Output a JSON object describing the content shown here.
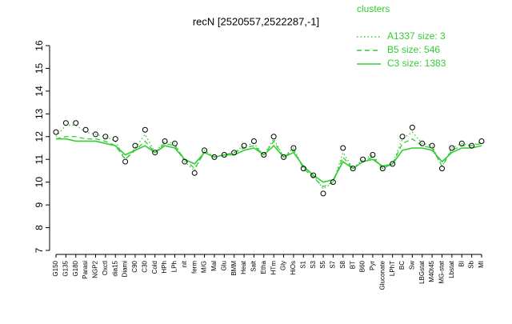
{
  "chart_data": {
    "type": "line",
    "title": "recN [2520557,2522287,-1]",
    "legend_title": "clusters",
    "categories": [
      "G150",
      "G135",
      "G180",
      "Parasi",
      "NGP2",
      "Oxctl",
      "dia15",
      "Diami",
      "C90",
      "C30",
      "Cold",
      "HPh",
      "LPh",
      "nit",
      "ferm",
      "M/G",
      "Mal",
      "Glu",
      "BMM",
      "Heat",
      "Salt",
      "Etha",
      "HTm",
      "Gly",
      "HiOs",
      "S1",
      "S3",
      "S5",
      "S7",
      "S8",
      "BT",
      "B60",
      "Pyr",
      "Gluconate",
      "LPhT",
      "BC",
      "Sw",
      "LBGstat",
      "M40t45",
      "MG-stat",
      "Lbstat",
      "BI",
      "Sb",
      "MI"
    ],
    "values": [
      12.2,
      12.6,
      12.6,
      12.3,
      12.1,
      12.0,
      11.9,
      10.9,
      11.6,
      12.3,
      11.3,
      11.8,
      11.7,
      10.9,
      10.4,
      11.4,
      11.1,
      11.2,
      11.3,
      11.6,
      11.8,
      11.2,
      12.0,
      11.1,
      11.5,
      10.6,
      10.3,
      9.5,
      10.0,
      11.5,
      10.6,
      11.0,
      11.2,
      10.6,
      10.8,
      12.0,
      12.4,
      11.7,
      11.6,
      10.6,
      11.5,
      11.7,
      11.6,
      11.8
    ],
    "point_color": "#000000",
    "series": [
      {
        "name": "A1337 size: 3",
        "color": "#33cc33",
        "dash": "dotted",
        "values": [
          12.0,
          12.5,
          12.5,
          12.2,
          12.1,
          12.0,
          11.8,
          11.0,
          11.5,
          12.1,
          11.3,
          11.8,
          11.7,
          10.9,
          10.5,
          11.4,
          11.1,
          11.2,
          11.3,
          11.6,
          11.7,
          11.2,
          11.9,
          11.1,
          11.5,
          10.6,
          10.3,
          9.7,
          10.0,
          11.3,
          10.6,
          11.0,
          11.2,
          10.6,
          10.8,
          11.9,
          12.2,
          11.7,
          11.6,
          10.7,
          11.5,
          11.7,
          11.6,
          11.8
        ]
      },
      {
        "name": "B5 size: 546",
        "color": "#33cc33",
        "dash": "dashed",
        "values": [
          11.9,
          12.0,
          12.0,
          11.9,
          11.9,
          11.8,
          11.6,
          11.0,
          11.4,
          11.8,
          11.3,
          11.7,
          11.6,
          11.0,
          10.6,
          11.3,
          11.1,
          11.2,
          11.3,
          11.5,
          11.6,
          11.2,
          11.8,
          11.1,
          11.4,
          10.6,
          10.2,
          9.8,
          10.0,
          11.1,
          10.6,
          10.9,
          11.1,
          10.6,
          10.8,
          11.7,
          11.9,
          11.6,
          11.5,
          10.7,
          11.4,
          11.6,
          11.6,
          11.7
        ]
      },
      {
        "name": "C3 size: 1383",
        "color": "#33cc33",
        "dash": "solid",
        "values": [
          11.9,
          11.9,
          11.8,
          11.8,
          11.8,
          11.7,
          11.6,
          11.2,
          11.4,
          11.6,
          11.3,
          11.6,
          11.5,
          11.0,
          10.8,
          11.3,
          11.1,
          11.2,
          11.2,
          11.4,
          11.5,
          11.2,
          11.6,
          11.1,
          11.3,
          10.7,
          10.3,
          10.0,
          10.1,
          10.9,
          10.6,
          10.9,
          11.0,
          10.7,
          10.8,
          11.4,
          11.5,
          11.5,
          11.4,
          10.9,
          11.3,
          11.5,
          11.5,
          11.6
        ]
      }
    ],
    "ylim": [
      7,
      16
    ],
    "yticks": [
      7,
      8,
      9,
      10,
      11,
      12,
      13,
      14,
      15,
      16
    ]
  }
}
